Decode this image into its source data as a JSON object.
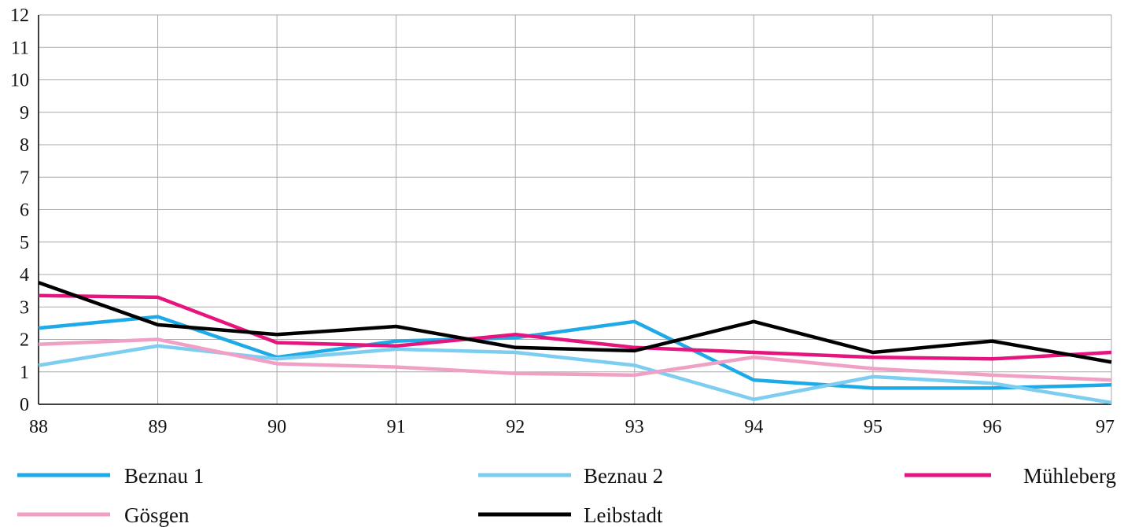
{
  "chart_data": {
    "type": "line",
    "title": "",
    "xlabel": "",
    "ylabel": "",
    "x": [
      "88",
      "89",
      "90",
      "91",
      "92",
      "93",
      "94",
      "95",
      "96",
      "97"
    ],
    "xlim": [
      88,
      97
    ],
    "ylim": [
      0,
      12
    ],
    "y_ticks": [
      "0",
      "1",
      "2",
      "3",
      "4",
      "5",
      "6",
      "7",
      "8",
      "9",
      "10",
      "11",
      "12"
    ],
    "grid": true,
    "legend_position": "bottom",
    "series": [
      {
        "name": "Beznau 1",
        "color": "#1eaae6",
        "values": [
          2.35,
          2.7,
          1.45,
          1.95,
          2.05,
          2.55,
          0.75,
          0.5,
          0.5,
          0.6
        ]
      },
      {
        "name": "Beznau 2",
        "color": "#7ccdf0",
        "values": [
          1.2,
          1.8,
          1.4,
          1.7,
          1.6,
          1.2,
          0.15,
          0.85,
          0.65,
          0.05
        ]
      },
      {
        "name": "Mühleberg",
        "color": "#e6147d",
        "values": [
          3.35,
          3.3,
          1.9,
          1.8,
          2.15,
          1.75,
          1.6,
          1.45,
          1.4,
          1.6
        ]
      },
      {
        "name": "Gösgen",
        "color": "#f0a0c4",
        "values": [
          1.85,
          2.0,
          1.25,
          1.15,
          0.95,
          0.9,
          1.45,
          1.1,
          0.9,
          0.75
        ]
      },
      {
        "name": "Leibstadt",
        "color": "#000000",
        "values": [
          3.75,
          2.45,
          2.15,
          2.4,
          1.75,
          1.65,
          2.55,
          1.6,
          1.95,
          1.3
        ]
      }
    ]
  }
}
